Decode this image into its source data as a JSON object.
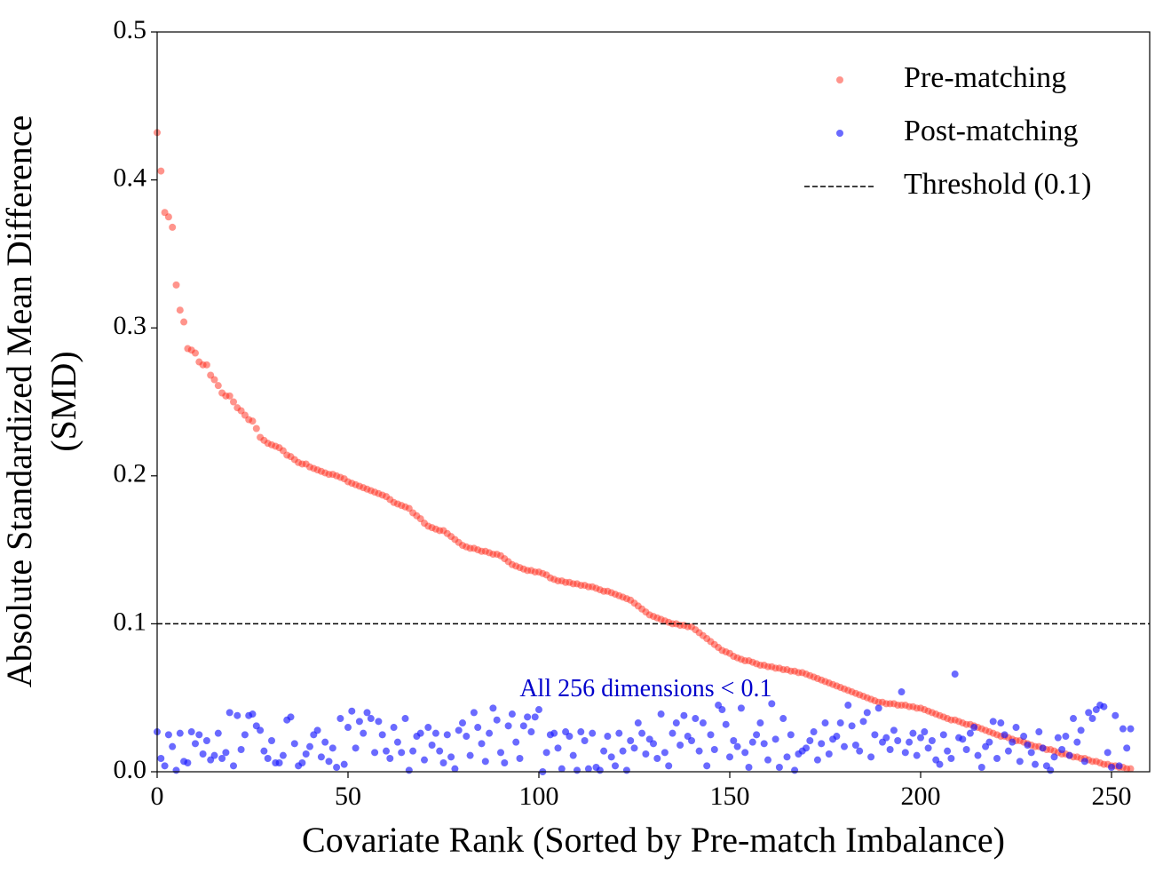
{
  "chart_data": {
    "type": "scatter",
    "xlabel": "Covariate Rank (Sorted by Pre-match Imbalance)",
    "ylabel": [
      "Absolute Standardized Mean Difference",
      "(SMD)"
    ],
    "xlim": [
      0,
      260
    ],
    "ylim": [
      0,
      0.5
    ],
    "xticks": [
      0,
      50,
      100,
      150,
      200,
      250
    ],
    "yticks": [
      {
        "value": 0,
        "label": "0.0"
      },
      0.1,
      0.2,
      0.3,
      0.4,
      0.5
    ],
    "legend": "upper right",
    "threshold": 0.1,
    "threshold_label": "Threshold (0.1)",
    "threshold_color": "#000000",
    "annotation": "All 256 dimensions < 0.1",
    "annotation_x": 128,
    "annotation_y": 0.055,
    "annotation_color": "#0000cc",
    "x": [
      0,
      1,
      2,
      3,
      4,
      5,
      6,
      7,
      8,
      9,
      10,
      11,
      12,
      13,
      14,
      15,
      16,
      17,
      18,
      19,
      20,
      21,
      22,
      23,
      24,
      25,
      26,
      27,
      28,
      29,
      30,
      31,
      32,
      33,
      34,
      35,
      36,
      37,
      38,
      39,
      40,
      41,
      42,
      43,
      44,
      45,
      46,
      47,
      48,
      49,
      50,
      51,
      52,
      53,
      54,
      55,
      56,
      57,
      58,
      59,
      60,
      61,
      62,
      63,
      64,
      65,
      66,
      67,
      68,
      69,
      70,
      71,
      72,
      73,
      74,
      75,
      76,
      77,
      78,
      79,
      80,
      81,
      82,
      83,
      84,
      85,
      86,
      87,
      88,
      89,
      90,
      91,
      92,
      93,
      94,
      95,
      96,
      97,
      98,
      99,
      100,
      101,
      102,
      103,
      104,
      105,
      106,
      107,
      108,
      109,
      110,
      111,
      112,
      113,
      114,
      115,
      116,
      117,
      118,
      119,
      120,
      121,
      122,
      123,
      124,
      125,
      126,
      127,
      128,
      129,
      130,
      131,
      132,
      133,
      134,
      135,
      136,
      137,
      138,
      139,
      140,
      141,
      142,
      143,
      144,
      145,
      146,
      147,
      148,
      149,
      150,
      151,
      152,
      153,
      154,
      155,
      156,
      157,
      158,
      159,
      160,
      161,
      162,
      163,
      164,
      165,
      166,
      167,
      168,
      169,
      170,
      171,
      172,
      173,
      174,
      175,
      176,
      177,
      178,
      179,
      180,
      181,
      182,
      183,
      184,
      185,
      186,
      187,
      188,
      189,
      190,
      191,
      192,
      193,
      194,
      195,
      196,
      197,
      198,
      199,
      200,
      201,
      202,
      203,
      204,
      205,
      206,
      207,
      208,
      209,
      210,
      211,
      212,
      213,
      214,
      215,
      216,
      217,
      218,
      219,
      220,
      221,
      222,
      223,
      224,
      225,
      226,
      227,
      228,
      229,
      230,
      231,
      232,
      233,
      234,
      235,
      236,
      237,
      238,
      239,
      240,
      241,
      242,
      243,
      244,
      245,
      246,
      247,
      248,
      249,
      250,
      251,
      252,
      253,
      254,
      255
    ],
    "series": [
      {
        "name": "Pre-matching",
        "color": "#ff2a1a",
        "values": [
          0.432,
          0.406,
          0.378,
          0.375,
          0.368,
          0.329,
          0.312,
          0.304,
          0.286,
          0.285,
          0.283,
          0.277,
          0.275,
          0.275,
          0.268,
          0.265,
          0.261,
          0.256,
          0.254,
          0.254,
          0.25,
          0.246,
          0.244,
          0.241,
          0.238,
          0.237,
          0.232,
          0.226,
          0.224,
          0.222,
          0.221,
          0.22,
          0.219,
          0.217,
          0.214,
          0.213,
          0.211,
          0.209,
          0.208,
          0.208,
          0.206,
          0.205,
          0.204,
          0.203,
          0.202,
          0.201,
          0.201,
          0.2,
          0.199,
          0.198,
          0.196,
          0.195,
          0.194,
          0.193,
          0.192,
          0.191,
          0.19,
          0.189,
          0.188,
          0.187,
          0.186,
          0.184,
          0.182,
          0.181,
          0.18,
          0.179,
          0.178,
          0.175,
          0.173,
          0.171,
          0.168,
          0.166,
          0.165,
          0.164,
          0.163,
          0.163,
          0.161,
          0.159,
          0.157,
          0.155,
          0.153,
          0.152,
          0.151,
          0.151,
          0.15,
          0.149,
          0.149,
          0.148,
          0.147,
          0.147,
          0.146,
          0.144,
          0.142,
          0.14,
          0.139,
          0.138,
          0.137,
          0.136,
          0.136,
          0.135,
          0.135,
          0.134,
          0.133,
          0.131,
          0.13,
          0.129,
          0.129,
          0.128,
          0.128,
          0.127,
          0.127,
          0.126,
          0.126,
          0.125,
          0.125,
          0.124,
          0.123,
          0.122,
          0.122,
          0.121,
          0.12,
          0.119,
          0.118,
          0.117,
          0.116,
          0.114,
          0.112,
          0.11,
          0.108,
          0.106,
          0.105,
          0.104,
          0.103,
          0.102,
          0.101,
          0.1,
          0.1,
          0.099,
          0.099,
          0.098,
          0.098,
          0.096,
          0.094,
          0.092,
          0.09,
          0.088,
          0.086,
          0.084,
          0.082,
          0.081,
          0.08,
          0.078,
          0.077,
          0.076,
          0.075,
          0.075,
          0.074,
          0.073,
          0.072,
          0.072,
          0.071,
          0.071,
          0.07,
          0.07,
          0.069,
          0.069,
          0.068,
          0.068,
          0.067,
          0.067,
          0.066,
          0.065,
          0.064,
          0.063,
          0.062,
          0.061,
          0.06,
          0.059,
          0.058,
          0.057,
          0.056,
          0.055,
          0.054,
          0.053,
          0.052,
          0.051,
          0.05,
          0.049,
          0.048,
          0.047,
          0.047,
          0.046,
          0.046,
          0.046,
          0.045,
          0.045,
          0.045,
          0.044,
          0.044,
          0.043,
          0.043,
          0.042,
          0.041,
          0.04,
          0.039,
          0.038,
          0.037,
          0.036,
          0.035,
          0.035,
          0.034,
          0.033,
          0.032,
          0.032,
          0.031,
          0.03,
          0.029,
          0.028,
          0.027,
          0.026,
          0.025,
          0.024,
          0.024,
          0.023,
          0.022,
          0.021,
          0.021,
          0.02,
          0.019,
          0.018,
          0.017,
          0.017,
          0.016,
          0.015,
          0.015,
          0.014,
          0.013,
          0.012,
          0.012,
          0.011,
          0.01,
          0.01,
          0.009,
          0.009,
          0.008,
          0.007,
          0.007,
          0.006,
          0.005,
          0.005,
          0.004,
          0.004,
          0.003,
          0.003,
          0.002,
          0.002
        ]
      },
      {
        "name": "Post-matching",
        "color": "#1a1aff",
        "values": [
          0.027,
          0.009,
          0.004,
          0.025,
          0.017,
          0.001,
          0.026,
          0.007,
          0.006,
          0.027,
          0.019,
          0.025,
          0.012,
          0.021,
          0.008,
          0.011,
          0.026,
          0.009,
          0.013,
          0.04,
          0.004,
          0.038,
          0.015,
          0.025,
          0.038,
          0.039,
          0.031,
          0.028,
          0.014,
          0.009,
          0.021,
          0.006,
          0.006,
          0.011,
          0.035,
          0.037,
          0.019,
          0.004,
          0.006,
          0.012,
          0.017,
          0.025,
          0.028,
          0.01,
          0.02,
          0.007,
          0.016,
          0.003,
          0.036,
          0.005,
          0.03,
          0.041,
          0.016,
          0.034,
          0.026,
          0.04,
          0.036,
          0.013,
          0.034,
          0.025,
          0.014,
          0.009,
          0.03,
          0.02,
          0.013,
          0.036,
          0.001,
          0.014,
          0.024,
          0.026,
          0.008,
          0.03,
          0.018,
          0.026,
          0.014,
          0.006,
          0.025,
          0.01,
          0.002,
          0.028,
          0.033,
          0.024,
          0.011,
          0.04,
          0.03,
          0.019,
          0.007,
          0.026,
          0.043,
          0.035,
          0.013,
          0.006,
          0.031,
          0.039,
          0.02,
          0.009,
          0.031,
          0.037,
          0.027,
          0.037,
          0.042,
          0,
          0.013,
          0.025,
          0.026,
          0.016,
          0.002,
          0.027,
          0.024,
          0.011,
          0.001,
          0.027,
          0.021,
          0.002,
          0.026,
          0.003,
          0.001,
          0.014,
          0.024,
          0.01,
          0.004,
          0.026,
          0.014,
          0.001,
          0.021,
          0.016,
          0.033,
          0.026,
          0.012,
          0.022,
          0.019,
          0.009,
          0.039,
          0.013,
          0.004,
          0.026,
          0.033,
          0.018,
          0.038,
          0.024,
          0.021,
          0.036,
          0.014,
          0.033,
          0.004,
          0.025,
          0.015,
          0.045,
          0.042,
          0.032,
          0.01,
          0.021,
          0.017,
          0.043,
          0.013,
          0.003,
          0.02,
          0.025,
          0.033,
          0.019,
          0.008,
          0.046,
          0.022,
          0.003,
          0.036,
          0.01,
          0.025,
          0.001,
          0.012,
          0.014,
          0.016,
          0.021,
          0.027,
          0.008,
          0.019,
          0.033,
          0.012,
          0.022,
          0.024,
          0.033,
          0.017,
          0.045,
          0.031,
          0.018,
          0.014,
          0.034,
          0.04,
          0.01,
          0.025,
          0.043,
          0.02,
          0.023,
          0.015,
          0.028,
          0.021,
          0.054,
          0.013,
          0.02,
          0.026,
          0.011,
          0.023,
          0.027,
          0.016,
          0.021,
          0.008,
          0.005,
          0.025,
          0.014,
          0.009,
          0.066,
          0.023,
          0.022,
          0.015,
          0.026,
          0.03,
          0.011,
          0.003,
          0.017,
          0.02,
          0.034,
          0.009,
          0.033,
          0.025,
          0.014,
          0.02,
          0.03,
          0.007,
          0.024,
          0.018,
          0.013,
          0.005,
          0.027,
          0.016,
          0.004,
          0.001,
          0.01,
          0.023,
          0.015,
          0.024,
          0.011,
          0.036,
          0.02,
          0.028,
          0.007,
          0.04,
          0.036,
          0.042,
          0.045,
          0.044,
          0.013,
          0.003,
          0.038,
          0.004,
          0.029,
          0.016,
          0.029
        ]
      }
    ]
  }
}
